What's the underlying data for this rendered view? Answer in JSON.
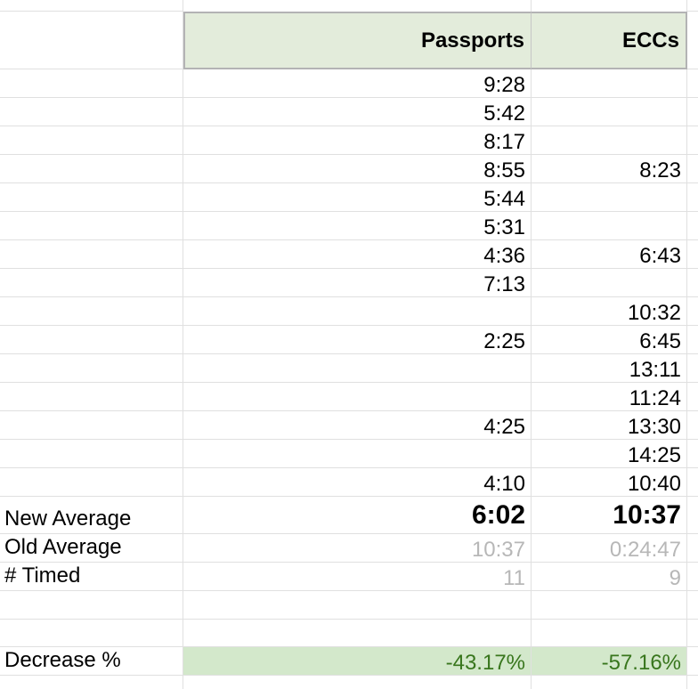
{
  "columns": {
    "passports_label": "Passports",
    "eccs_label": "ECCs"
  },
  "rows": [
    {
      "passports": "9:28",
      "eccs": ""
    },
    {
      "passports": "5:42",
      "eccs": ""
    },
    {
      "passports": "8:17",
      "eccs": ""
    },
    {
      "passports": "8:55",
      "eccs": "8:23"
    },
    {
      "passports": "5:44",
      "eccs": ""
    },
    {
      "passports": "5:31",
      "eccs": ""
    },
    {
      "passports": "4:36",
      "eccs": "6:43"
    },
    {
      "passports": "7:13",
      "eccs": ""
    },
    {
      "passports": "",
      "eccs": "10:32"
    },
    {
      "passports": "2:25",
      "eccs": "6:45"
    },
    {
      "passports": "",
      "eccs": "13:11"
    },
    {
      "passports": "",
      "eccs": "11:24"
    },
    {
      "passports": "4:25",
      "eccs": "13:30"
    },
    {
      "passports": "",
      "eccs": "14:25"
    },
    {
      "passports": "4:10",
      "eccs": "10:40"
    }
  ],
  "summary": {
    "new_average": {
      "label": "New Average",
      "passports": "6:02",
      "eccs": "10:37"
    },
    "old_average": {
      "label": "Old Average",
      "passports": "10:37",
      "eccs": "0:24:47"
    },
    "timed": {
      "label": "# Timed",
      "passports": "11",
      "eccs": "9"
    },
    "decrease": {
      "label": "Decrease %",
      "passports": "-43.17%",
      "eccs": "-57.16%"
    }
  },
  "colors": {
    "header_bg": "#e3ecdb",
    "header_border": "#b3b3b4",
    "decrease_bg": "#d3e8cb",
    "decrease_text": "#38761d",
    "muted_text": "#b7b7b7",
    "gridline": "#e0e0e0"
  }
}
